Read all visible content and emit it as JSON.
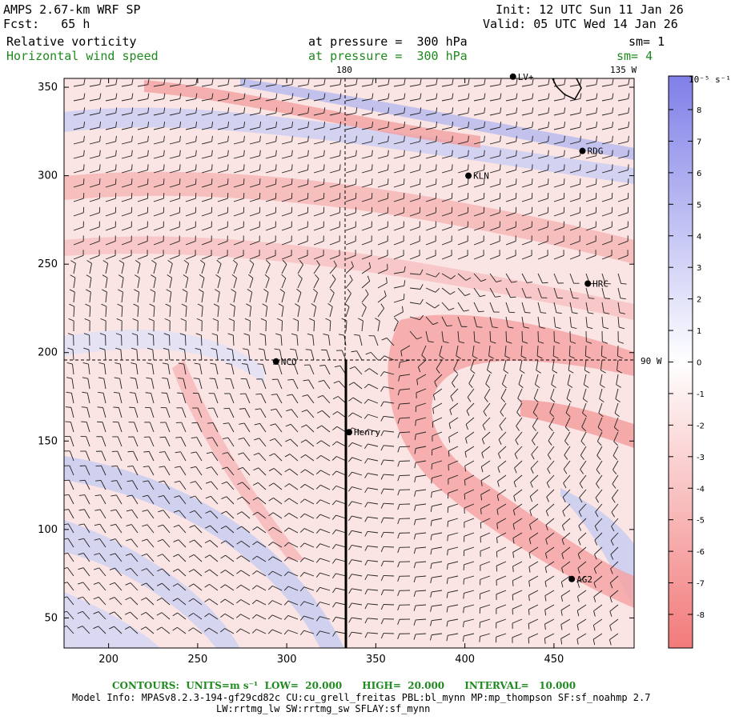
{
  "header": {
    "model": "AMPS 2.67-km WRF SP",
    "forecast": "Fcst:   65 h",
    "init": "Init: 12 UTC Sun 11 Jan 26",
    "valid": "Valid: 05 UTC Wed 14 Jan 26",
    "field1_name": "Relative vorticity",
    "field1_level": "at pressure =  300 hPa",
    "field1_smooth": "sm= 1",
    "field2_name": "Horizontal wind speed",
    "field2_level": "at pressure =  300 hPa",
    "field2_smooth": "sm= 4"
  },
  "map": {
    "meridian_labels": [
      "180",
      "135 W",
      "90 W"
    ],
    "x_ticks": [
      "200",
      "250",
      "300",
      "350",
      "400",
      "450"
    ],
    "y_ticks": [
      "50",
      "100",
      "150",
      "200",
      "250",
      "300",
      "350"
    ],
    "x_range": [
      175,
      495
    ],
    "y_range": [
      33,
      355
    ],
    "stations": [
      {
        "name": "NCO",
        "x": 294,
        "y": 195
      },
      {
        "name": "Henry",
        "x": 335,
        "y": 155
      },
      {
        "name": "KLN",
        "x": 402,
        "y": 300
      },
      {
        "name": "RDG",
        "x": 466,
        "y": 314
      },
      {
        "name": "HRC",
        "x": 469,
        "y": 239
      },
      {
        "name": "AG2",
        "x": 460,
        "y": 72
      },
      {
        "name": "LV+",
        "x": 427,
        "y": 356
      }
    ]
  },
  "colorbar": {
    "units": "10⁻⁵ s⁻¹",
    "labels": [
      "8",
      "7",
      "6",
      "5",
      "4",
      "3",
      "2",
      "1",
      "0",
      "-1",
      "-2",
      "-3",
      "-4",
      "-5",
      "-6",
      "-7",
      "-8"
    ],
    "positive_color": "#7f7fe8",
    "negative_color": "#f27a7a"
  },
  "footer": {
    "contours": "CONTOURS:  UNITS=m s⁻¹  LOW=  20.000      HIGH=  20.000      INTERVAL=   10.000",
    "model_info": "Model Info: MPASv8.2.3-194-gf29cd82c CU:cu_grell_freitas PBL:bl_mynn MP:mp_thompson SF:sf_noahmp 2.7",
    "model_info2": "LW:rrtmg_lw SW:rrtmg_sw SFLAY:sf_mynn"
  }
}
